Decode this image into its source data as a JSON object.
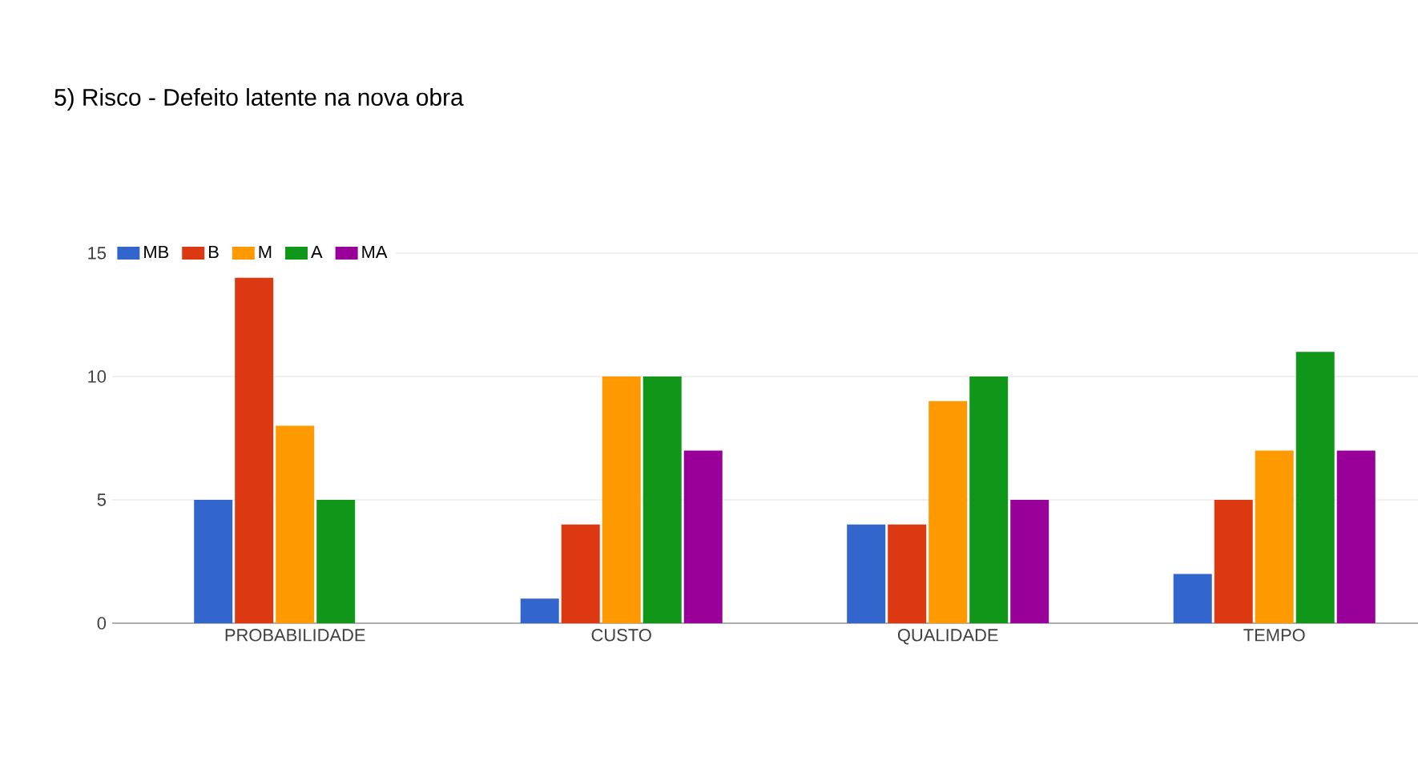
{
  "chart_data": {
    "type": "bar",
    "title": "5) Risco - Defeito latente na nova obra",
    "categories": [
      "PROBABILIDADE",
      "CUSTO",
      "QUALIDADE",
      "TEMPO"
    ],
    "series": [
      {
        "name": "MB",
        "color": "#3366cc",
        "values": [
          5,
          1,
          4,
          2
        ]
      },
      {
        "name": "B",
        "color": "#dc3912",
        "values": [
          14,
          4,
          4,
          5
        ]
      },
      {
        "name": "M",
        "color": "#ff9900",
        "values": [
          8,
          10,
          9,
          7
        ]
      },
      {
        "name": "A",
        "color": "#109618",
        "values": [
          5,
          10,
          10,
          11
        ]
      },
      {
        "name": "MA",
        "color": "#990099",
        "values": [
          0,
          7,
          5,
          7
        ]
      }
    ],
    "ylim": [
      0,
      15
    ],
    "yticks": [
      0,
      5,
      10,
      15
    ],
    "grid": "y",
    "legend": "top left"
  }
}
